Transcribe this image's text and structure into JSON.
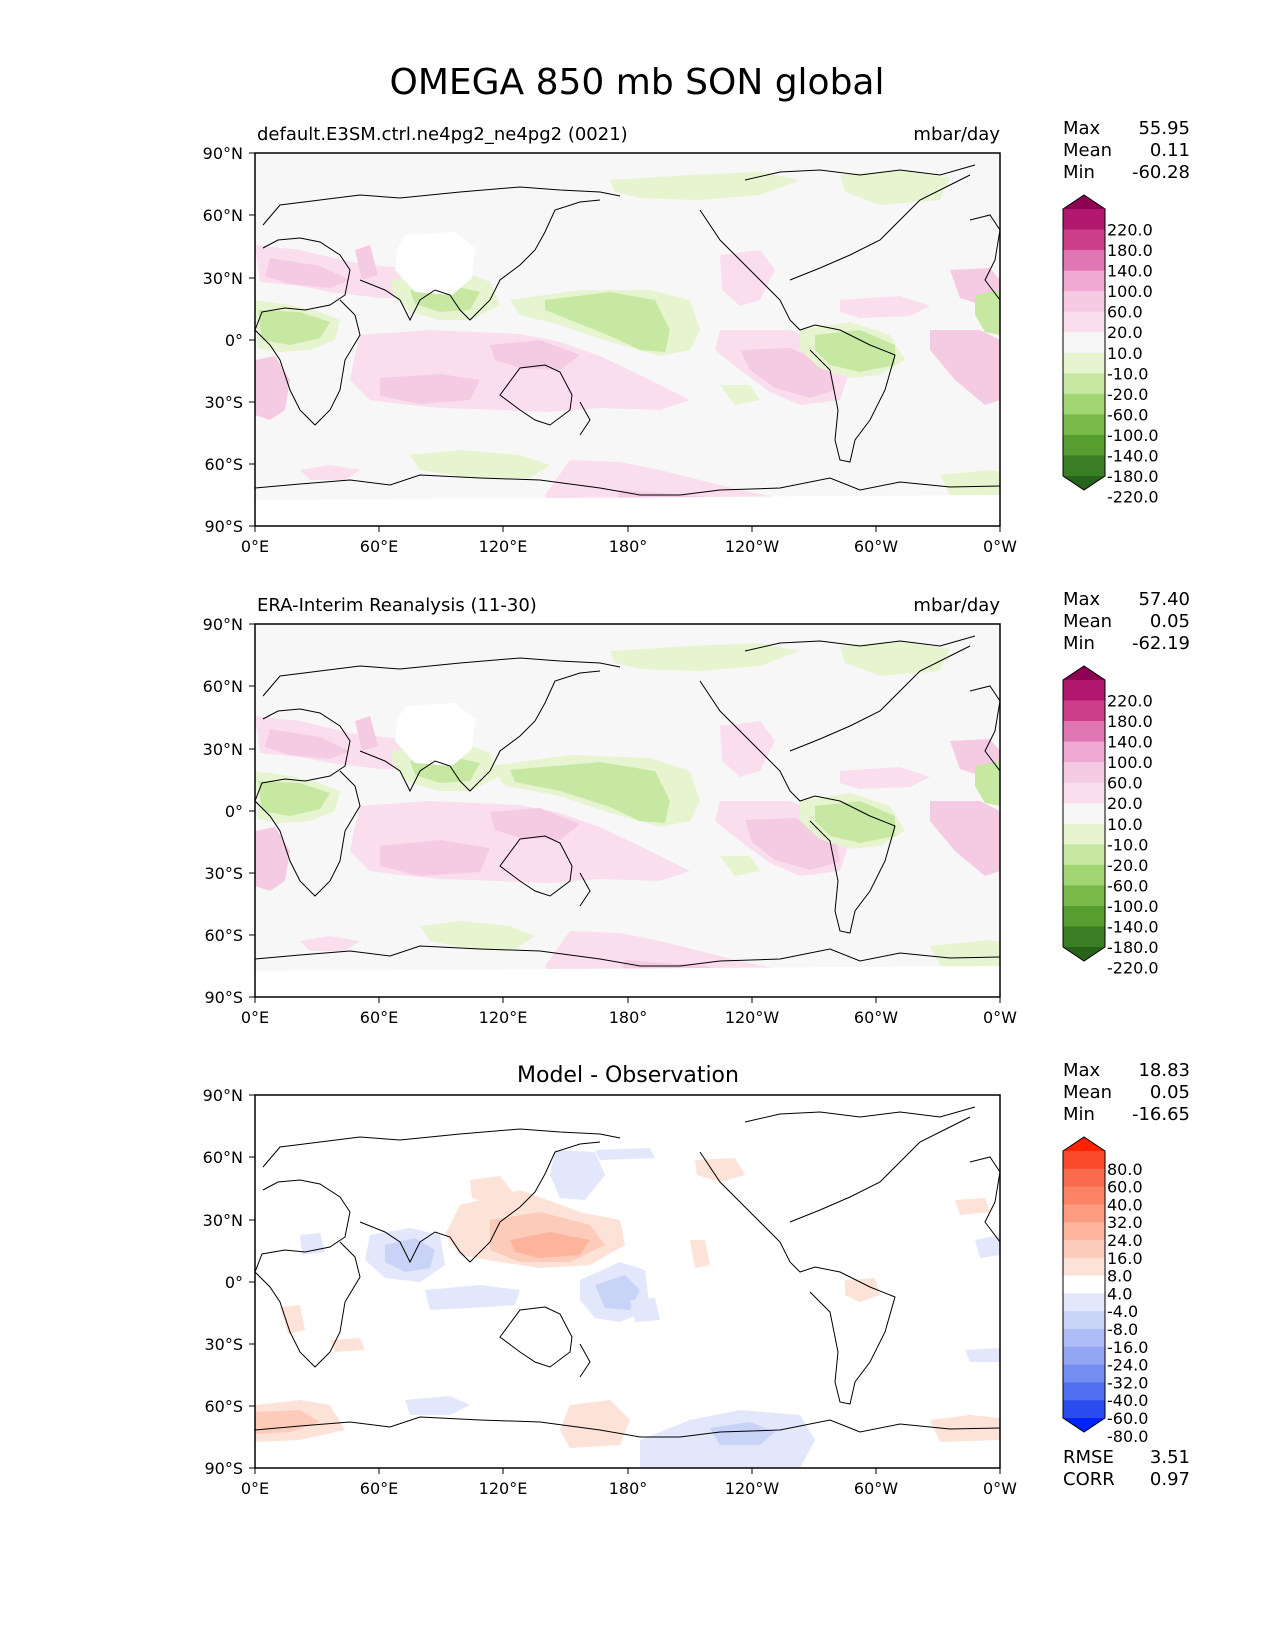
{
  "title": "OMEGA 850 mb SON global",
  "lon_ticks": [
    "0°E",
    "60°E",
    "120°E",
    "180°",
    "120°W",
    "60°W",
    "0°W"
  ],
  "lat_ticks": [
    "90°N",
    "60°N",
    "30°N",
    "0°",
    "30°S",
    "60°S",
    "90°S"
  ],
  "panels": [
    {
      "id": "model",
      "title_left": "default.E3SM.ctrl.ne4pg2_ne4pg2 (0021)",
      "title_center": "",
      "title_right": "mbar/day",
      "stats": [
        {
          "label": "Max",
          "value": "55.95"
        },
        {
          "label": "Mean",
          "value": "0.11"
        },
        {
          "label": "Min",
          "value": "-60.28"
        }
      ],
      "colorbar": {
        "labels": [
          "220.0",
          "180.0",
          "140.0",
          "100.0",
          "60.0",
          "20.0",
          "10.0",
          "-10.0",
          "-20.0",
          "-60.0",
          "-100.0",
          "-140.0",
          "-180.0",
          "-220.0"
        ],
        "colors": [
          "#8e0152",
          "#b3186f",
          "#cd3f8b",
          "#e077b4",
          "#eea8d1",
          "#f5cbe3",
          "#fadeee",
          "#f7f7f7",
          "#e6f5d0",
          "#c7e8a2",
          "#a2d673",
          "#7bba48",
          "#569e2f",
          "#3b7f24",
          "#276419"
        ]
      }
    },
    {
      "id": "obs",
      "title_left": "ERA-Interim Reanalysis (11-30)",
      "title_center": "",
      "title_right": "mbar/day",
      "stats": [
        {
          "label": "Max",
          "value": "57.40"
        },
        {
          "label": "Mean",
          "value": "0.05"
        },
        {
          "label": "Min",
          "value": "-62.19"
        }
      ],
      "colorbar": {
        "labels": [
          "220.0",
          "180.0",
          "140.0",
          "100.0",
          "60.0",
          "20.0",
          "10.0",
          "-10.0",
          "-20.0",
          "-60.0",
          "-100.0",
          "-140.0",
          "-180.0",
          "-220.0"
        ],
        "colors": [
          "#8e0152",
          "#b3186f",
          "#cd3f8b",
          "#e077b4",
          "#eea8d1",
          "#f5cbe3",
          "#fadeee",
          "#f7f7f7",
          "#e6f5d0",
          "#c7e8a2",
          "#a2d673",
          "#7bba48",
          "#569e2f",
          "#3b7f24",
          "#276419"
        ]
      }
    },
    {
      "id": "diff",
      "title_left": "",
      "title_center": "Model - Observation",
      "title_right": "",
      "stats": [
        {
          "label": "Max",
          "value": "18.83"
        },
        {
          "label": "Mean",
          "value": "0.05"
        },
        {
          "label": "Min",
          "value": "-16.65"
        }
      ],
      "extra_stats": [
        {
          "label": "RMSE",
          "value": "3.51"
        },
        {
          "label": "CORR",
          "value": "0.97"
        }
      ],
      "colorbar": {
        "labels": [
          "80.0",
          "60.0",
          "40.0",
          "32.0",
          "24.0",
          "16.0",
          "8.0",
          "4.0",
          "-4.0",
          "-8.0",
          "-16.0",
          "-24.0",
          "-32.0",
          "-40.0",
          "-60.0",
          "-80.0"
        ],
        "colors": [
          "#ff2200",
          "#fb4a2a",
          "#fa6a4c",
          "#fb8265",
          "#fc9b80",
          "#fdb49d",
          "#fdcbba",
          "#fde2d8",
          "#ffffff",
          "#e2e7fb",
          "#c9d3f8",
          "#aebdf5",
          "#93a6f3",
          "#748ff1",
          "#4f6ff0",
          "#2a4cef",
          "#0022ff"
        ]
      }
    }
  ]
}
